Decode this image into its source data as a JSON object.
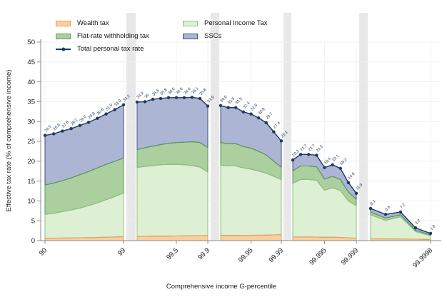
{
  "chart_data": {
    "type": "area",
    "title": "",
    "xlabel": "Comprehensive income G-percentile",
    "ylabel": "Effective tax rate (% of comprehensive income)",
    "ylim": [
      0,
      50
    ],
    "yticks": [
      0,
      5,
      10,
      15,
      20,
      25,
      30,
      35,
      40,
      45,
      50
    ],
    "stack_order": [
      "wealth_tax",
      "personal_income_tax",
      "flat_rate_withholding_tax",
      "sscs"
    ],
    "legend": [
      {
        "label": "Wealth tax",
        "type": "area",
        "series": "wealth_tax"
      },
      {
        "label": "Flat-rate withholding tax",
        "type": "area",
        "series": "flat_rate_withholding_tax"
      },
      {
        "label": "Total personal tax rate",
        "type": "line",
        "series": "total"
      },
      {
        "label": "Personal Income Tax",
        "type": "area",
        "series": "personal_income_tax"
      },
      {
        "label": "SSCs",
        "type": "area",
        "series": "sscs"
      }
    ],
    "colors": {
      "wealth_fill": "#F9CFA2",
      "wealth_stroke": "#E59C55",
      "pit_fill": "#DDF0D3",
      "pit_stroke": "#8FC182",
      "flat_fill": "#ABCF9E",
      "flat_stroke": "#5F9A54",
      "ssc_fill": "#ACB6D4",
      "ssc_stroke": "#3C5083",
      "total_line": "#1F3864",
      "separator": "#E8E8E8",
      "grid": "#EDEDED",
      "axis": "#8A8A8A",
      "text": "#1A1A1A"
    },
    "panels": [
      {
        "xticks": [
          {
            "index": 0,
            "label": "90"
          },
          {
            "index": 9,
            "label": "99"
          }
        ],
        "totals": [
          26.5,
          26.9,
          27.6,
          28.2,
          29.0,
          29.8,
          30.8,
          31.9,
          33.0,
          34.2
        ],
        "labels": [
          "26.5",
          "26.9",
          "27.6",
          "28.2",
          "29.0",
          "29.8",
          "30.8",
          "31.9",
          "33.0",
          "34.2"
        ],
        "bands": {
          "wealth_top": [
            0.6,
            0.62,
            0.65,
            0.68,
            0.72,
            0.76,
            0.8,
            0.85,
            0.92,
            1.0
          ],
          "pit_top": [
            6.6,
            6.9,
            7.3,
            7.7,
            8.2,
            8.8,
            9.5,
            10.3,
            11.1,
            12.0
          ],
          "flat_top": [
            14.0,
            14.5,
            15.1,
            15.8,
            16.6,
            17.4,
            18.3,
            19.2,
            20.0,
            20.8
          ]
        }
      },
      {
        "xticks": [
          {
            "index": 5,
            "label": "99.5"
          },
          {
            "index": 9,
            "label": "99.9"
          }
        ],
        "totals": [
          34.9,
          35.0,
          35.6,
          35.8,
          36.0,
          36.0,
          36.0,
          36.1,
          35.8,
          33.9
        ],
        "labels": [
          "34.9",
          "35",
          "35.6",
          "35.8",
          "36.0",
          "36.0",
          "36.0",
          "36.1",
          "35.8",
          "33.9"
        ],
        "bands": {
          "wealth_top": [
            1.05,
            1.08,
            1.1,
            1.12,
            1.15,
            1.18,
            1.2,
            1.22,
            1.25,
            1.3
          ],
          "pit_top": [
            18.4,
            18.7,
            18.9,
            19.1,
            19.2,
            19.2,
            19.1,
            18.9,
            18.5,
            17.3
          ],
          "flat_top": [
            22.9,
            23.4,
            23.8,
            24.2,
            24.5,
            24.7,
            24.8,
            24.9,
            24.7,
            23.5
          ]
        }
      },
      {
        "xticks": [
          {
            "index": 4,
            "label": "99.95"
          },
          {
            "index": 8,
            "label": "99.99"
          }
        ],
        "totals": [
          34.0,
          33.5,
          33.5,
          32.4,
          31.9,
          30.9,
          29.7,
          27.4,
          25.1
        ],
        "labels": [
          "34.0",
          "33.5",
          "33.5",
          "32.4",
          "31.9",
          "30.9",
          "29.7",
          "27.4",
          "25.1"
        ],
        "bands": {
          "wealth_top": [
            1.3,
            1.3,
            1.32,
            1.34,
            1.36,
            1.38,
            1.4,
            1.45,
            1.5
          ],
          "pit_top": [
            19.0,
            18.8,
            18.8,
            18.3,
            18.0,
            17.5,
            17.0,
            16.2,
            15.4
          ],
          "flat_top": [
            24.7,
            24.4,
            24.4,
            23.7,
            23.3,
            22.5,
            21.6,
            20.0,
            18.5
          ]
        }
      },
      {
        "xticks": [
          {
            "index": 4,
            "label": "99.995"
          },
          {
            "index": 8,
            "label": "99.999"
          }
        ],
        "totals": [
          20.3,
          21.7,
          21.7,
          21.5,
          18.4,
          19.1,
          18.2,
          14.6,
          11.9
        ],
        "labels": [
          "20.3",
          "21.7",
          "21.7",
          "21.5",
          "18.4",
          "19.1",
          "18.2",
          "14.6",
          "11.9"
        ],
        "bands": {
          "wealth_top": [
            0.9,
            0.92,
            0.92,
            0.9,
            0.85,
            0.85,
            0.8,
            0.7,
            0.6
          ],
          "pit_top": [
            14.4,
            15.4,
            15.4,
            15.2,
            12.7,
            13.3,
            12.6,
            10.0,
            8.8
          ],
          "flat_top": [
            17.6,
            18.8,
            18.8,
            18.6,
            15.5,
            16.2,
            15.4,
            12.2,
            10.4
          ]
        }
      },
      {
        "xticks": [
          {
            "index": 4,
            "label": "99.9998"
          }
        ],
        "totals": [
          8.1,
          6.6,
          7.2,
          3.2,
          1.8
        ],
        "labels": [
          "8.1",
          "6.6",
          "7.2",
          "3.2",
          "1.8"
        ],
        "bands": {
          "wealth_top": [
            0.45,
            0.42,
            0.4,
            0.35,
            0.3
          ],
          "pit_top": [
            6.5,
            5.1,
            6.0,
            2.3,
            1.2
          ],
          "flat_top": [
            7.2,
            5.7,
            6.5,
            2.6,
            1.45
          ]
        }
      }
    ]
  }
}
